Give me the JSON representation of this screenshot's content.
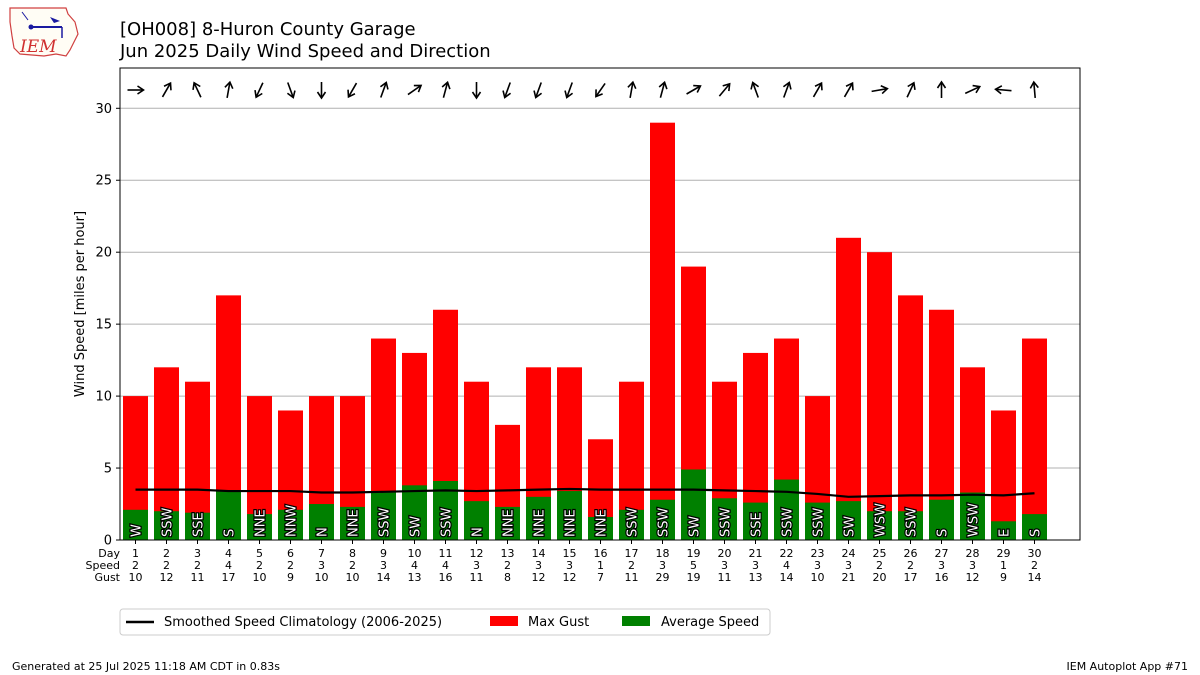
{
  "header": {
    "title_line1": "[OH008] 8-Huron County Garage",
    "title_line2": "Jun 2025 Daily Wind Speed and Direction",
    "logo_text": "IEM"
  },
  "footer": {
    "generated": "Generated at 25 Jul 2025 11:18 AM CDT in 0.83s",
    "app": "IEM Autoplot App #71"
  },
  "colors": {
    "gust": "#ff0000",
    "avg": "#008000",
    "climo": "#000000",
    "grid": "#b0b0b0"
  },
  "chart_data": {
    "type": "bar",
    "ylabel": "Wind Speed [miles per hour]",
    "ylim": [
      0,
      32.8
    ],
    "yticks": [
      0,
      5,
      10,
      15,
      20,
      25,
      30
    ],
    "grid": "horizontal",
    "legend_position": "bottom",
    "row_labels": [
      "Day",
      "Speed",
      "Gust"
    ],
    "days": [
      1,
      2,
      3,
      4,
      5,
      6,
      7,
      8,
      9,
      10,
      11,
      12,
      13,
      14,
      15,
      16,
      17,
      18,
      19,
      20,
      21,
      22,
      23,
      24,
      25,
      26,
      27,
      28,
      29,
      30
    ],
    "series": [
      {
        "name": "Max Gust",
        "values": [
          10,
          12,
          11,
          17,
          10,
          9,
          10,
          10,
          14,
          13,
          16,
          11,
          8,
          12,
          12,
          7,
          11,
          29,
          19,
          11,
          13,
          14,
          10,
          21,
          20,
          17,
          16,
          12,
          9,
          14
        ]
      },
      {
        "name": "Average Speed",
        "values": [
          2.1,
          2.0,
          1.9,
          3.4,
          1.8,
          2.1,
          2.5,
          2.3,
          3.3,
          3.8,
          4.1,
          2.7,
          2.3,
          3.0,
          3.4,
          1.6,
          2.1,
          2.8,
          4.9,
          2.9,
          2.6,
          4.2,
          2.6,
          2.7,
          2.0,
          2.0,
          2.8,
          3.3,
          1.3,
          1.8
        ]
      },
      {
        "name": "Smoothed Speed Climatology (2006-2025)",
        "values": [
          3.5,
          3.5,
          3.5,
          3.4,
          3.4,
          3.4,
          3.3,
          3.3,
          3.35,
          3.4,
          3.45,
          3.4,
          3.45,
          3.5,
          3.55,
          3.5,
          3.5,
          3.5,
          3.5,
          3.45,
          3.4,
          3.35,
          3.2,
          3.0,
          3.05,
          3.1,
          3.1,
          3.15,
          3.1,
          3.25
        ]
      }
    ],
    "speed_row": [
      "2",
      "2",
      "2",
      "4",
      "2",
      "2",
      "3",
      "2",
      "3",
      "4",
      "4",
      "3",
      "2",
      "3",
      "3",
      "1",
      "2",
      "3",
      "5",
      "3",
      "3",
      "4",
      "3",
      "3",
      "2",
      "2",
      "3",
      "3",
      "1",
      "2"
    ],
    "gust_row": [
      "10",
      "12",
      "11",
      "17",
      "10",
      "9",
      "10",
      "10",
      "14",
      "13",
      "16",
      "11",
      "8",
      "12",
      "12",
      "7",
      "11",
      "29",
      "19",
      "11",
      "13",
      "14",
      "10",
      "21",
      "20",
      "17",
      "16",
      "12",
      "9",
      "14"
    ],
    "directions": [
      "W",
      "SSW",
      "SSE",
      "S",
      "NNE",
      "NNW",
      "N",
      "NNE",
      "SSW",
      "SW",
      "SSW",
      "N",
      "NNE",
      "NNE",
      "NNE",
      "NNE",
      "SSW",
      "SSW",
      "SW",
      "SSW",
      "SSE",
      "SSW",
      "SSW",
      "SW",
      "WSW",
      "SSW",
      "S",
      "WSW",
      "E",
      "S"
    ],
    "arrow_angles": [
      0,
      -60,
      -115,
      -80,
      115,
      70,
      90,
      120,
      -70,
      -35,
      -75,
      90,
      110,
      110,
      110,
      125,
      -80,
      -75,
      -30,
      -50,
      -110,
      -70,
      -60,
      -60,
      -10,
      -65,
      -90,
      -25,
      185,
      -95
    ]
  }
}
